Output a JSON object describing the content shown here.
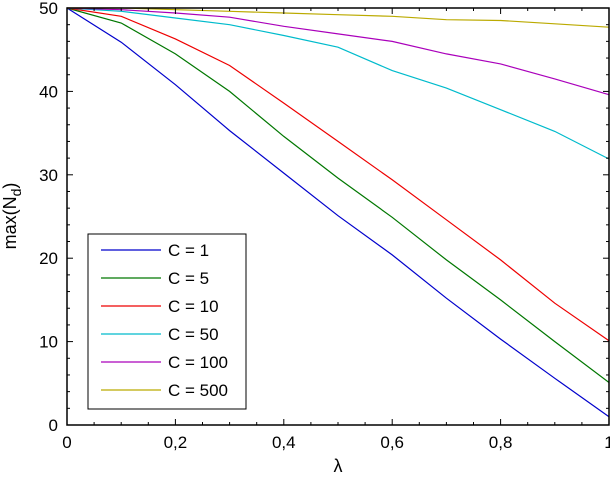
{
  "chart_data": {
    "type": "line",
    "title": "",
    "xlabel": "λ",
    "ylabel": "max(N_d)",
    "ylabel_main": "max(N",
    "ylabel_sub": "d",
    "ylabel_close": ")",
    "xlim": [
      0,
      1
    ],
    "ylim": [
      0,
      50
    ],
    "grid": false,
    "legend_position": "lower left",
    "x_ticks": [
      "0",
      "0,2",
      "0,4",
      "0,6",
      "0,8",
      "1"
    ],
    "y_ticks": [
      "0",
      "10",
      "20",
      "30",
      "40",
      "50"
    ],
    "x": [
      0,
      0.1,
      0.2,
      0.3,
      0.4,
      0.5,
      0.6,
      0.7,
      0.8,
      0.9,
      1.0
    ],
    "series": [
      {
        "name": "C = 1",
        "color": "#0000cc",
        "values": [
          50,
          45.9,
          40.8,
          35.3,
          30.2,
          25.1,
          20.4,
          15.2,
          10.3,
          5.6,
          1.0
        ]
      },
      {
        "name": "C = 5",
        "color": "#007700",
        "values": [
          50,
          48.2,
          44.5,
          40.0,
          34.6,
          29.6,
          24.9,
          19.8,
          15.0,
          10.0,
          5.1
        ]
      },
      {
        "name": "C = 10",
        "color": "#ee0000",
        "values": [
          50,
          49.0,
          46.3,
          43.1,
          38.6,
          34.0,
          29.4,
          24.6,
          19.8,
          14.6,
          10.1
        ]
      },
      {
        "name": "C = 50",
        "color": "#00bbcc",
        "values": [
          50,
          49.6,
          48.8,
          48.0,
          46.7,
          45.3,
          42.5,
          40.4,
          37.8,
          35.2,
          31.9
        ]
      },
      {
        "name": "C = 100",
        "color": "#aa00bb",
        "values": [
          50,
          49.8,
          49.4,
          48.9,
          47.8,
          46.9,
          46.0,
          44.5,
          43.3,
          41.5,
          39.6
        ]
      },
      {
        "name": "C = 500",
        "color": "#bbaa00",
        "values": [
          50,
          50.0,
          49.8,
          49.6,
          49.4,
          49.2,
          49.0,
          48.6,
          48.5,
          48.1,
          47.7
        ]
      }
    ]
  }
}
